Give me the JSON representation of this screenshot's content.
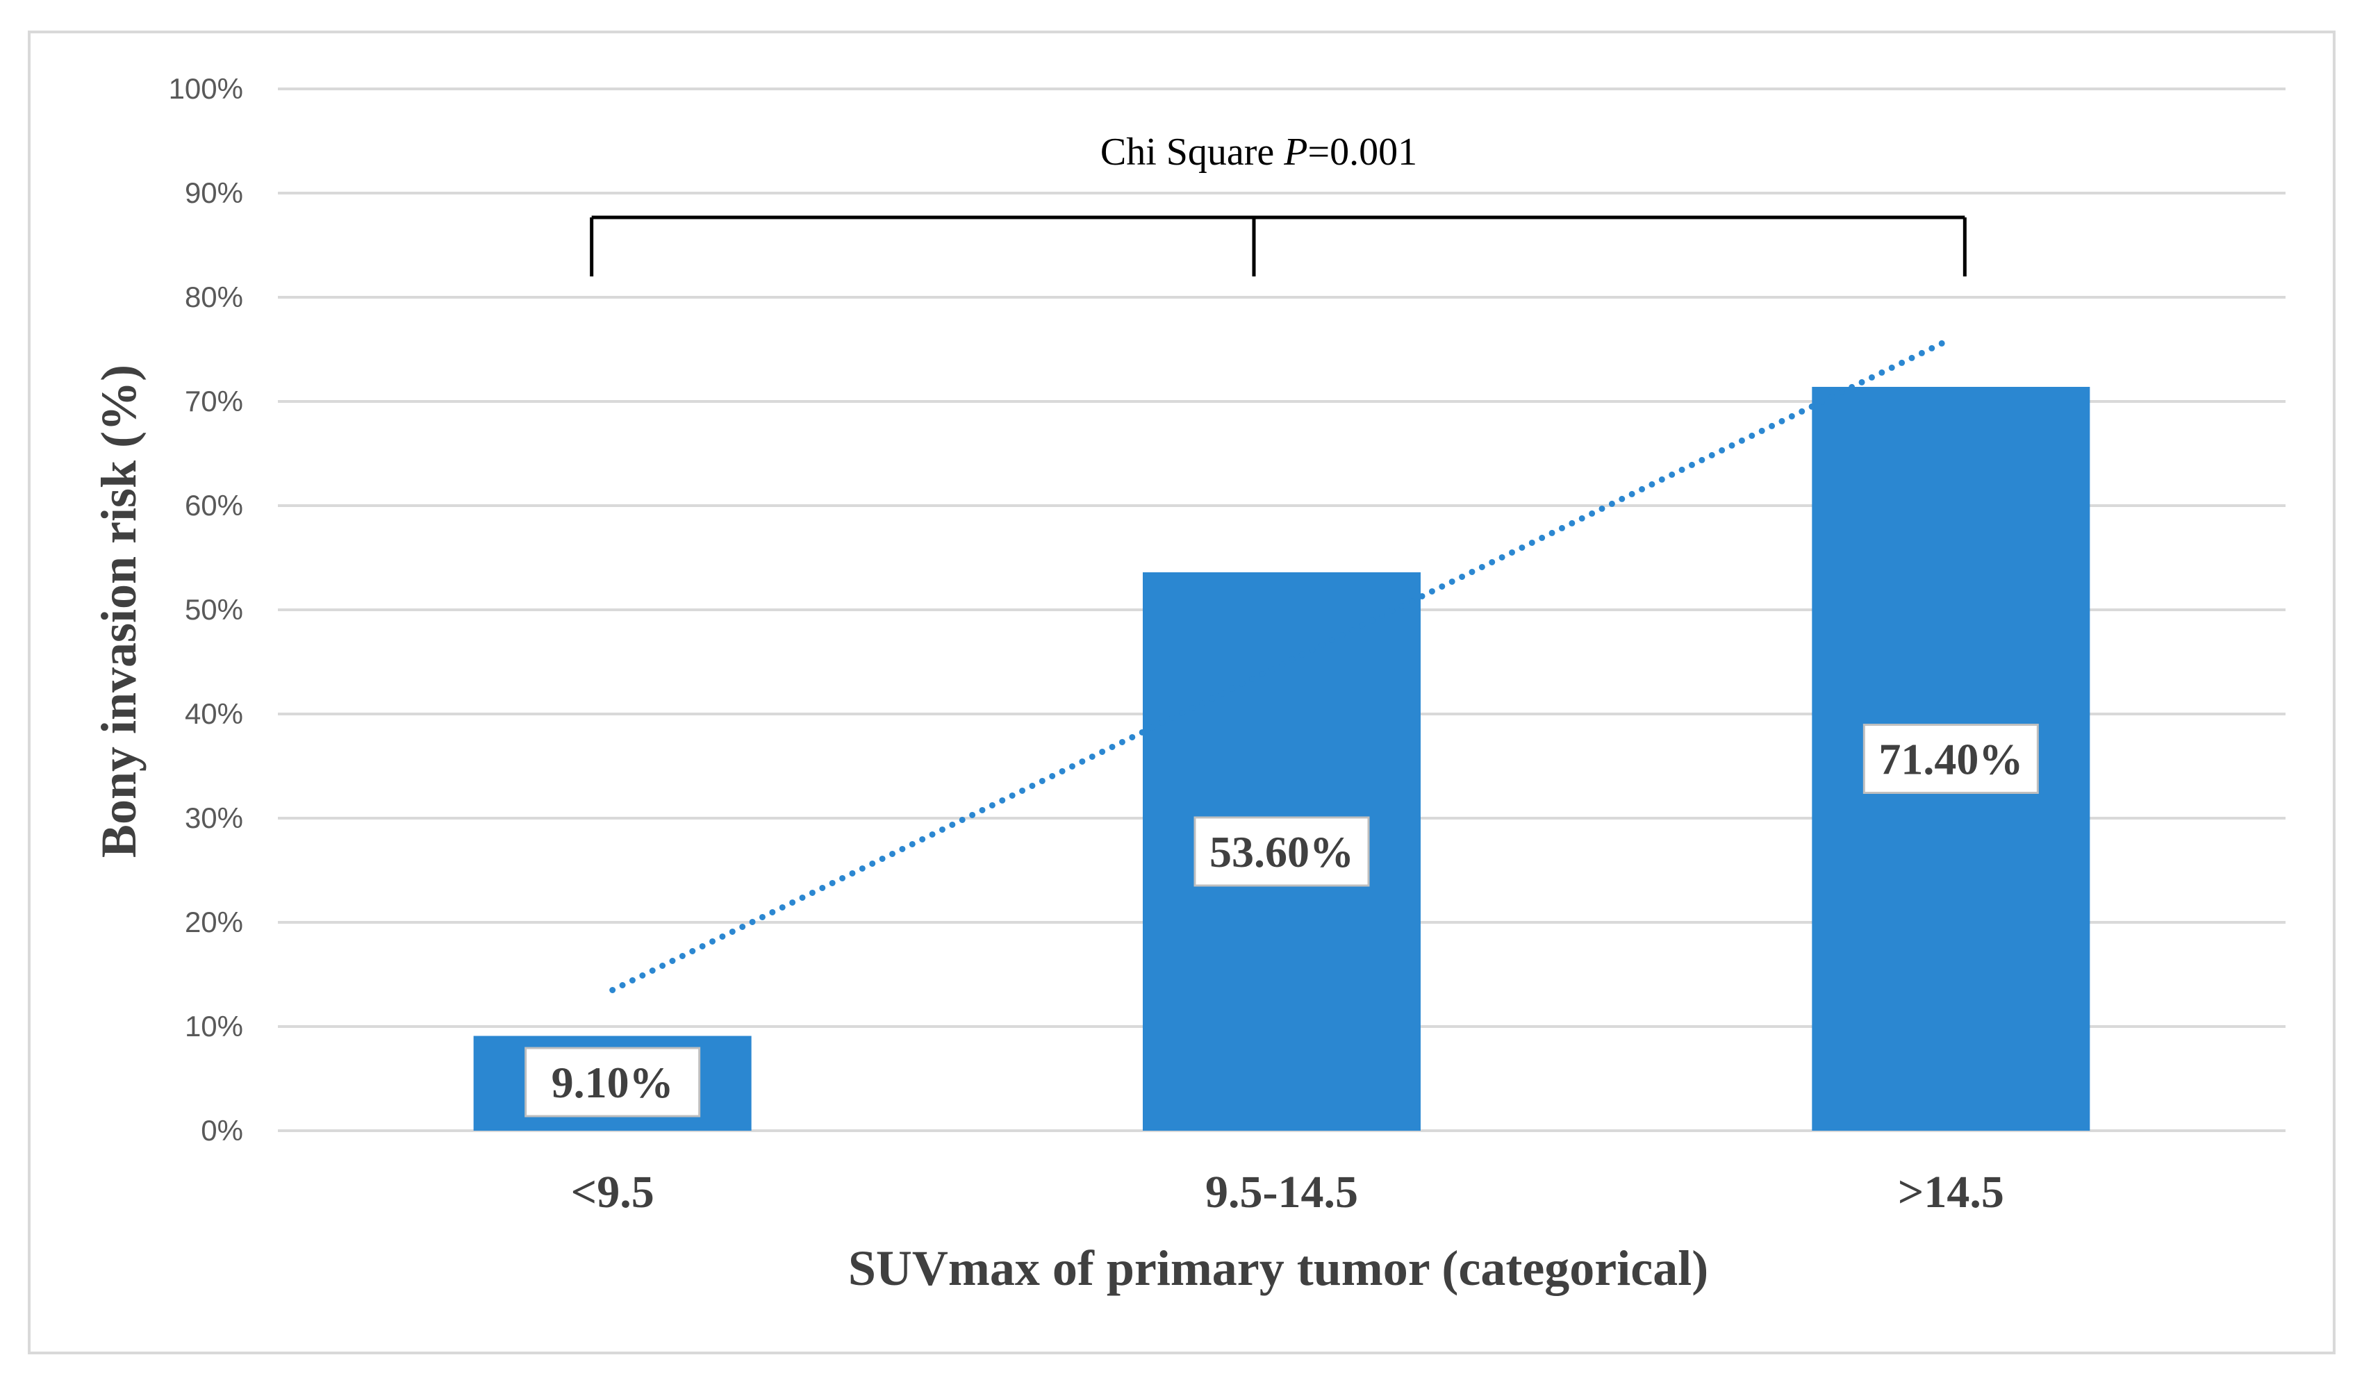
{
  "chart_data": {
    "type": "bar",
    "title": "",
    "xlabel": "SUVmax of primary tumor (categorical)",
    "ylabel": "Bony invasion risk (%)",
    "categories": [
      "<9.5",
      "9.5-14.5",
      ">14.5"
    ],
    "values": [
      9.1,
      53.6,
      71.4
    ],
    "data_labels": [
      "9.10%",
      "53.60%",
      "71.40%"
    ],
    "ylim": [
      0,
      100
    ],
    "yticks": [
      "0%",
      "10%",
      "20%",
      "30%",
      "40%",
      "50%",
      "60%",
      "70%",
      "80%",
      "90%",
      "100%"
    ],
    "grid": true,
    "bar_color": "#2b87d1",
    "trendline": {
      "style": "dotted",
      "kind": "linear",
      "color": "#2b87d1",
      "start": 13.5,
      "end": 76
    },
    "annotation": {
      "prefix": "Chi Square ",
      "p_symbol": "P",
      "suffix": "=0.001"
    }
  }
}
